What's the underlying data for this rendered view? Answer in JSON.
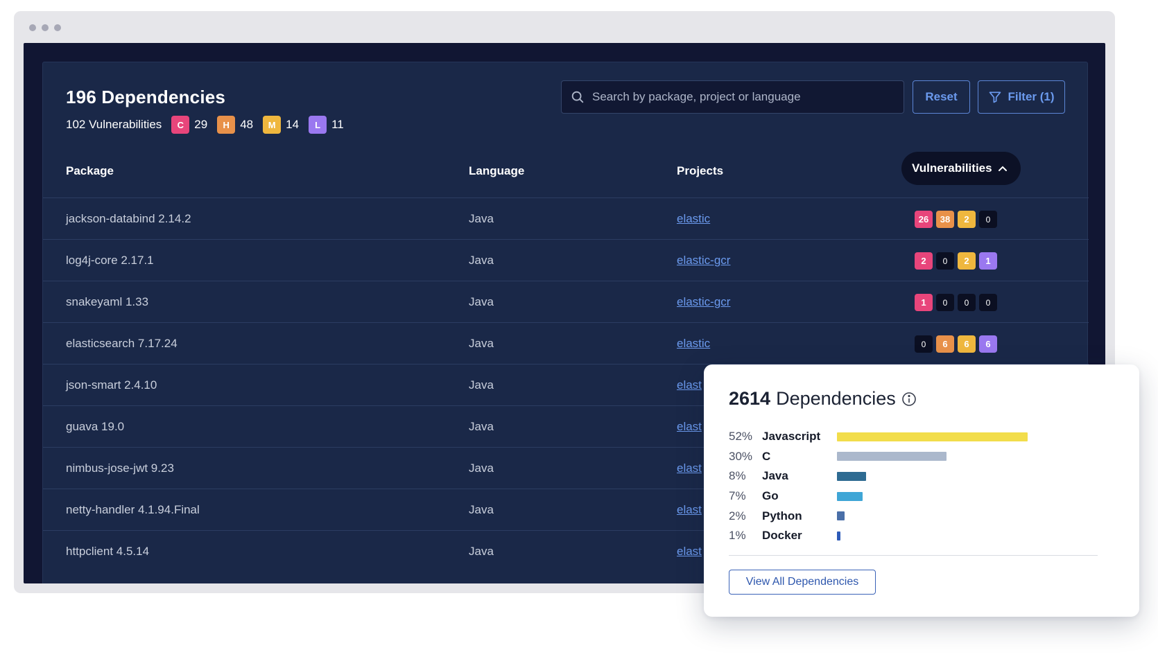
{
  "header": {
    "title": "196 Dependencies",
    "vuln_label": "102 Vulnerabilities",
    "severities": [
      {
        "letter": "C",
        "count": "29",
        "color": "#e8457b"
      },
      {
        "letter": "H",
        "count": "48",
        "color": "#e8914a"
      },
      {
        "letter": "M",
        "count": "14",
        "color": "#efb73e"
      },
      {
        "letter": "L",
        "count": "11",
        "color": "#9a78f0"
      }
    ]
  },
  "search": {
    "placeholder": "Search by package, project or language"
  },
  "buttons": {
    "reset": "Reset",
    "filter": "Filter (1)"
  },
  "table": {
    "columns": {
      "package": "Package",
      "language": "Language",
      "projects": "Projects",
      "vulnerabilities": "Vulnerabilities"
    },
    "sort": {
      "column": "vulnerabilities",
      "direction": "ascending"
    },
    "rows": [
      {
        "package": "jackson-databind 2.14.2",
        "language": "Java",
        "project": "elastic",
        "vulns": [
          "26",
          "38",
          "2",
          "0"
        ]
      },
      {
        "package": "log4j-core 2.17.1",
        "language": "Java",
        "project": "elastic-gcr",
        "vulns": [
          "2",
          "0",
          "2",
          "1"
        ]
      },
      {
        "package": "snakeyaml 1.33",
        "language": "Java",
        "project": "elastic-gcr",
        "vulns": [
          "1",
          "0",
          "0",
          "0"
        ]
      },
      {
        "package": "elasticsearch 7.17.24",
        "language": "Java",
        "project": "elastic",
        "vulns": [
          "0",
          "6",
          "6",
          "6"
        ]
      },
      {
        "package": "json-smart 2.4.10",
        "language": "Java",
        "project": "elast",
        "vulns": []
      },
      {
        "package": "guava 19.0",
        "language": "Java",
        "project": "elast",
        "vulns": []
      },
      {
        "package": "nimbus-jose-jwt 9.23",
        "language": "Java",
        "project": "elast",
        "vulns": []
      },
      {
        "package": "netty-handler 4.1.94.Final",
        "language": "Java",
        "project": "elast",
        "vulns": []
      },
      {
        "package": "httpclient 4.5.14",
        "language": "Java",
        "project": "elast",
        "vulns": []
      }
    ]
  },
  "card": {
    "count": "2614",
    "label": "Dependencies",
    "icon": "info-icon",
    "languages": [
      {
        "pct": "52%",
        "name": "Javascript",
        "share": 0.52,
        "color": "#f2dd4b"
      },
      {
        "pct": "30%",
        "name": "C",
        "share": 0.3,
        "color": "#abb8cc"
      },
      {
        "pct": "8%",
        "name": "Java",
        "share": 0.08,
        "color": "#2e6b92"
      },
      {
        "pct": "7%",
        "name": "Go",
        "share": 0.07,
        "color": "#3fa6d6"
      },
      {
        "pct": "2%",
        "name": "Python",
        "share": 0.02,
        "color": "#4a6fa8"
      },
      {
        "pct": "1%",
        "name": "Docker",
        "share": 0.01,
        "color": "#2e5bb8"
      }
    ],
    "button": "View All Dependencies"
  }
}
